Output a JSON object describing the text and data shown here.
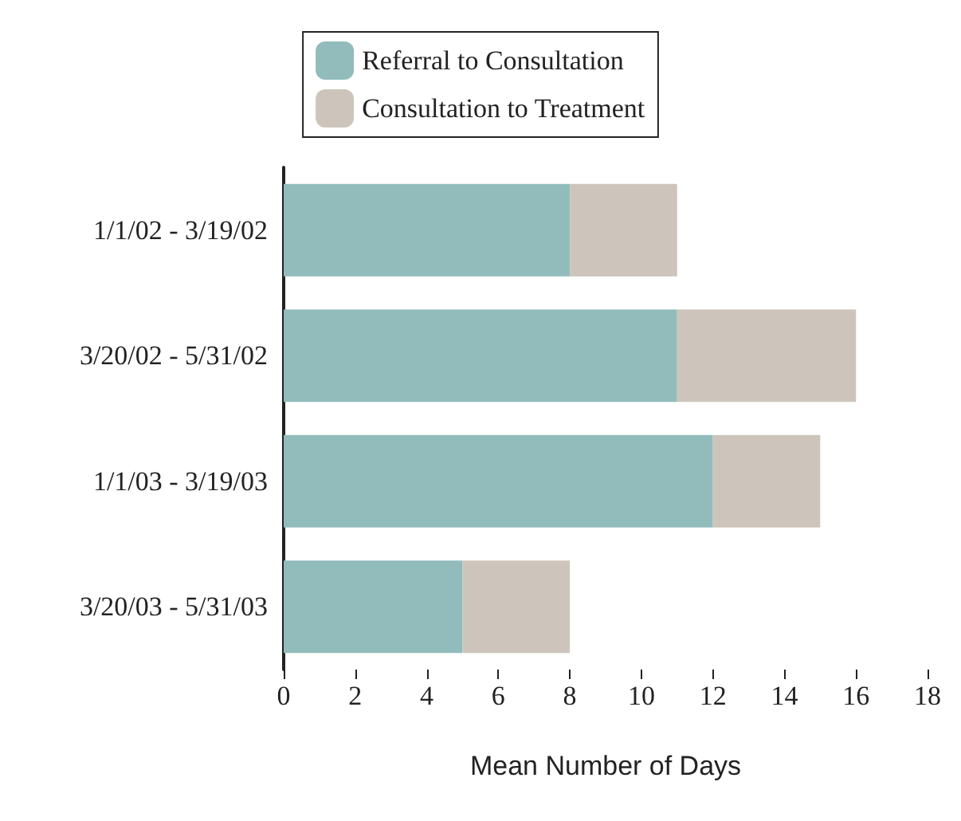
{
  "chart_data": {
    "type": "bar",
    "orientation": "horizontal",
    "stacked": true,
    "xlabel": "Mean Number of Days",
    "categories": [
      "1/1/02 - 3/19/02",
      "3/20/02 - 5/31/02",
      "1/1/03 - 3/19/03",
      "3/20/03 - 5/31/03"
    ],
    "series": [
      {
        "name": "Referral to Consultation",
        "color": "#92bcbb",
        "values": [
          8,
          11,
          12,
          5
        ]
      },
      {
        "name": "Consultation to Treatment",
        "color": "#cdc5bc",
        "values": [
          3,
          5,
          3,
          3
        ]
      }
    ],
    "xlim": [
      0,
      18
    ],
    "xticks": [
      0,
      2,
      4,
      6,
      8,
      10,
      12,
      14,
      16,
      18
    ],
    "grid": false,
    "legend": "top"
  }
}
